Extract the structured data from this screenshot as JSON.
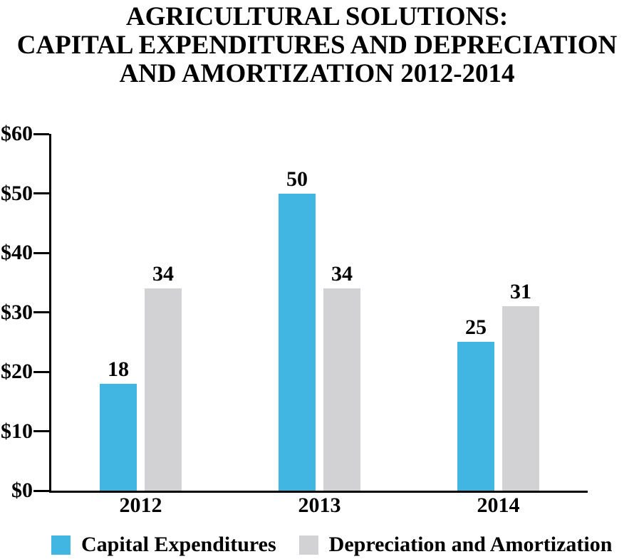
{
  "title": {
    "lines": [
      "AGRICULTURAL SOLUTIONS:",
      "CAPITAL EXPENDITURES AND DEPRECIATION",
      "AND AMORTIZATION 2012-2014"
    ]
  },
  "chart_data": {
    "type": "bar",
    "title": "AGRICULTURAL SOLUTIONS: CAPITAL EXPENDITURES AND DEPRECIATION AND AMORTIZATION 2012-2014",
    "categories": [
      "2012",
      "2013",
      "2014"
    ],
    "series": [
      {
        "name": "Capital Expenditures",
        "color": "#41B6E3",
        "values": [
          18,
          50,
          25
        ]
      },
      {
        "name": "Depreciation and Amortization",
        "color": "#D2D2D4",
        "values": [
          34,
          34,
          31
        ]
      }
    ],
    "xlabel": "",
    "ylabel": "",
    "ylim": [
      0,
      60
    ],
    "yticks": [
      0,
      10,
      20,
      30,
      40,
      50,
      60
    ],
    "ytick_labels": [
      "$0",
      "$10",
      "$20",
      "$30",
      "$40",
      "$50",
      "$60"
    ],
    "grid": false,
    "legend_position": "bottom",
    "bar_value_labels": true
  },
  "colors": {
    "background": "#FFFFFF",
    "axis": "#000000",
    "text": "#000000",
    "capex_blue": "#41B6E3",
    "da_gray": "#D2D2D4"
  }
}
